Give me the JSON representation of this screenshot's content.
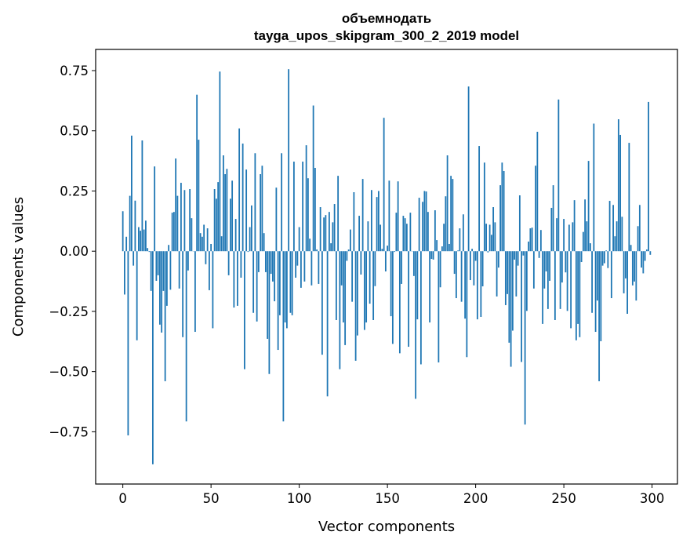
{
  "chart_data": {
    "type": "bar",
    "title_line1": "объемнодать",
    "title_line2": "tayga_upos_skipgram_300_2_2019 model",
    "xlabel": "Vector components",
    "ylabel": "Components values",
    "xlim": [
      -15.4,
      314.4
    ],
    "ylim": [
      -0.967,
      0.838
    ],
    "xticks": [
      0,
      50,
      100,
      150,
      200,
      250,
      300
    ],
    "xtick_labels": [
      "0",
      "50",
      "100",
      "150",
      "200",
      "250",
      "300"
    ],
    "yticks": [
      -0.75,
      -0.5,
      -0.25,
      0,
      0.25,
      0.5,
      0.75
    ],
    "ytick_labels": [
      "−0.75",
      "−0.50",
      "−0.25",
      "0.00",
      "0.25",
      "0.50",
      "0.75"
    ],
    "grid": false,
    "bar_color": "#1f77b4",
    "values": [
      0.166,
      -0.18,
      0.06,
      -0.765,
      0.23,
      0.48,
      -0.06,
      0.21,
      -0.37,
      0.1,
      0.085,
      0.46,
      0.09,
      0.127,
      0.013,
      -0.003,
      -0.165,
      -0.885,
      0.352,
      -0.123,
      -0.1,
      -0.305,
      -0.338,
      -0.165,
      -0.54,
      -0.227,
      0.026,
      -0.16,
      0.16,
      0.163,
      0.385,
      0.23,
      -0.155,
      0.284,
      -0.357,
      0.254,
      -0.707,
      -0.08,
      0.258,
      0.137,
      0.0,
      -0.335,
      0.65,
      0.463,
      0.075,
      0.06,
      0.11,
      -0.054,
      0.095,
      -0.162,
      0.03,
      -0.32,
      0.258,
      0.218,
      0.287,
      0.746,
      0.062,
      0.398,
      0.32,
      0.342,
      -0.1,
      0.218,
      0.293,
      -0.234,
      0.134,
      -0.227,
      0.51,
      -0.11,
      0.447,
      -0.49,
      0.339,
      -0.003,
      0.1,
      0.19,
      -0.256,
      0.407,
      -0.292,
      -0.087,
      0.32,
      0.355,
      0.075,
      -0.087,
      -0.364,
      -0.51,
      -0.094,
      -0.126,
      -0.208,
      0.264,
      -0.41,
      -0.266,
      0.407,
      -0.707,
      -0.296,
      -0.32,
      0.756,
      -0.256,
      -0.266,
      0.372,
      -0.11,
      -0.06,
      0.1,
      -0.152,
      0.372,
      -0.126,
      0.44,
      0.303,
      0.052,
      -0.142,
      0.605,
      0.346,
      0.007,
      -0.136,
      0.183,
      -0.43,
      0.14,
      0.15,
      -0.603,
      0.163,
      0.033,
      0.12,
      0.196,
      -0.286,
      0.313,
      -0.49,
      -0.142,
      -0.296,
      -0.39,
      -0.04,
      0.007,
      0.09,
      -0.21,
      0.245,
      -0.455,
      -0.35,
      0.147,
      -0.097,
      0.3,
      -0.327,
      -0.296,
      0.124,
      -0.218,
      0.254,
      -0.286,
      -0.145,
      0.225,
      0.25,
      0.11,
      0.01,
      0.554,
      -0.084,
      0.023,
      0.293,
      -0.27,
      -0.385,
      -0.003,
      0.16,
      0.29,
      -0.424,
      -0.136,
      0.147,
      0.137,
      0.114,
      -0.397,
      0.16,
      0.0,
      -0.103,
      -0.613,
      -0.283,
      0.222,
      -0.47,
      0.205,
      0.25,
      0.248,
      0.163,
      -0.296,
      -0.032,
      -0.035,
      0.17,
      0.046,
      -0.462,
      -0.15,
      0.02,
      0.114,
      0.228,
      0.398,
      0.03,
      0.313,
      0.3,
      -0.094,
      -0.195,
      0.003,
      0.095,
      -0.21,
      0.153,
      -0.28,
      -0.44,
      0.684,
      -0.12,
      0.01,
      -0.142,
      -0.04,
      -0.283,
      0.437,
      -0.273,
      -0.146,
      0.368,
      0.114,
      -0.005,
      0.11,
      0.068,
      0.183,
      0.12,
      -0.188,
      -0.068,
      0.274,
      0.368,
      0.333,
      -0.224,
      -0.178,
      -0.38,
      -0.48,
      -0.33,
      -0.035,
      -0.188,
      -0.06,
      0.232,
      -0.46,
      -0.018,
      -0.72,
      -0.248,
      0.04,
      0.095,
      0.098,
      -0.155,
      0.355,
      0.496,
      -0.028,
      0.088,
      -0.302,
      -0.155,
      -0.084,
      -0.24,
      -0.123,
      0.18,
      0.274,
      -0.286,
      0.137,
      0.63,
      -0.24,
      -0.13,
      0.134,
      -0.088,
      -0.248,
      0.11,
      -0.32,
      0.12,
      0.212,
      -0.37,
      -0.302,
      -0.357,
      -0.045,
      0.08,
      0.215,
      0.124,
      0.375,
      0.033,
      -0.256,
      0.53,
      -0.335,
      -0.205,
      -0.54,
      -0.374,
      -0.06,
      -0.05,
      0.003,
      -0.07,
      0.209,
      -0.195,
      0.192,
      0.062,
      0.124,
      0.548,
      0.483,
      0.143,
      -0.175,
      -0.113,
      -0.26,
      0.45,
      0.026,
      -0.142,
      -0.126,
      -0.205,
      0.104,
      0.192,
      -0.068,
      -0.092,
      -0.04,
      0.007,
      0.62,
      -0.015
    ]
  }
}
